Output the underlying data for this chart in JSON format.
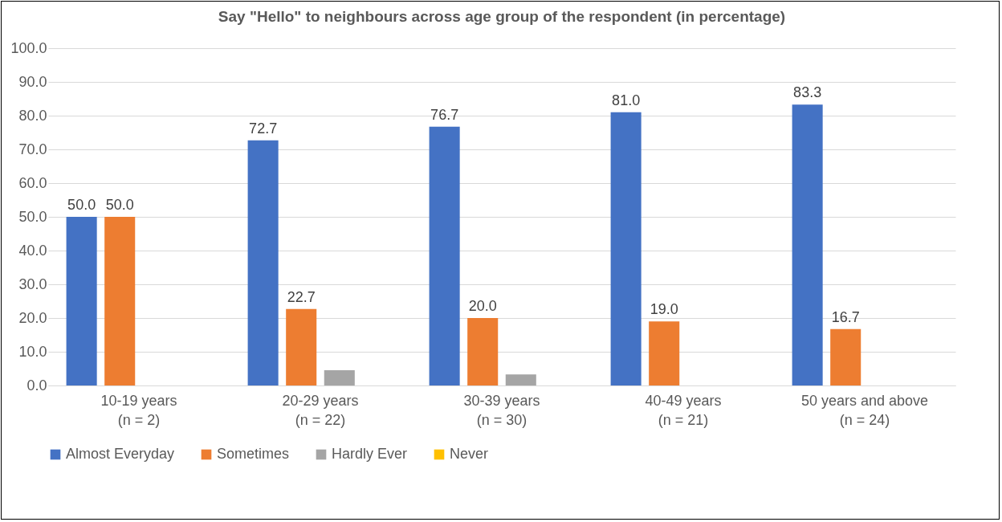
{
  "chart_data": {
    "type": "bar",
    "title": "Say \"Hello\" to neighbours across age group of the respondent (in percentage)",
    "categories": [
      "10-19 years\n(n = 2)",
      "20-29 years\n(n = 22)",
      "30-39 years\n(n = 30)",
      "40-49 years\n(n = 21)",
      "50 years and above\n(n = 24)"
    ],
    "series": [
      {
        "name": "Almost Everyday",
        "color": "#4472c4",
        "values": [
          50.0,
          72.7,
          76.7,
          81.0,
          83.3
        ],
        "value_labels": [
          "50.0",
          "72.7",
          "76.7",
          "81.0",
          "83.3"
        ]
      },
      {
        "name": "Sometimes",
        "color": "#ed7d31",
        "values": [
          50.0,
          22.7,
          20.0,
          19.0,
          16.7
        ],
        "value_labels": [
          "50.0",
          "22.7",
          "20.0",
          "19.0",
          "16.7"
        ]
      },
      {
        "name": "Hardly Ever",
        "color": "#a5a5a5",
        "values": [
          0,
          4.5,
          3.3,
          0,
          0
        ]
      },
      {
        "name": "Never",
        "color": "#ffc000",
        "values": [
          0,
          0,
          0,
          0,
          0
        ]
      }
    ],
    "ylim": [
      0,
      100
    ],
    "yticks": [
      {
        "value": 0,
        "label": "0.0"
      },
      {
        "value": 10,
        "label": "10.0"
      },
      {
        "value": 20,
        "label": "20.0"
      },
      {
        "value": 30,
        "label": "30.0"
      },
      {
        "value": 40,
        "label": "40.0"
      },
      {
        "value": 50,
        "label": "50.0"
      },
      {
        "value": 60,
        "label": "60.0"
      },
      {
        "value": 70,
        "label": "70.0"
      },
      {
        "value": 80,
        "label": "80.0"
      },
      {
        "value": 90,
        "label": "90.0"
      },
      {
        "value": 100,
        "label": "100.0"
      }
    ],
    "grid": "y",
    "legend": "bottom"
  }
}
